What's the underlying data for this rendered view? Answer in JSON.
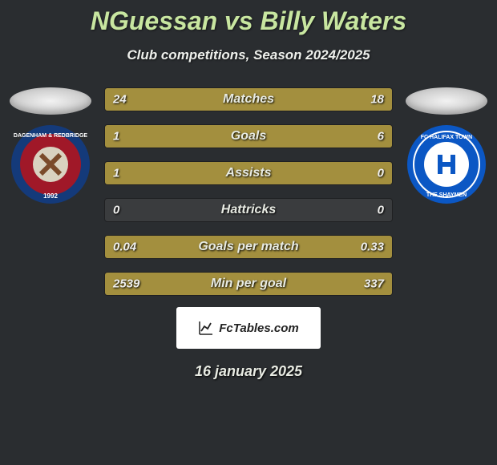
{
  "title": "NGuessan vs Billy Waters",
  "subtitle": "Club competitions, Season 2024/2025",
  "date": "16 january 2025",
  "footer": "FcTables.com",
  "colors": {
    "barFill": "#a38f3e",
    "barTrack": "#3a3c3e",
    "titleColor": "#c8e6a0",
    "bg": "#2a2d30"
  },
  "teamL": {
    "name": "Dagenham & Redbridge",
    "crest": {
      "bg": "#a01828",
      "ring": "#143a7a",
      "text": "#ffffff"
    }
  },
  "teamR": {
    "name": "FC Halifax Town",
    "crest": {
      "bg": "#0b57c4",
      "ring": "#ffffff",
      "text": "#ffffff",
      "inner": "#ffffff"
    }
  },
  "rows": [
    {
      "label": "Matches",
      "left": "24",
      "right": "18",
      "lw": 57,
      "rw": 43
    },
    {
      "label": "Goals",
      "left": "1",
      "right": "6",
      "lw": 14,
      "rw": 86
    },
    {
      "label": "Assists",
      "left": "1",
      "right": "0",
      "lw": 100,
      "rw": 0
    },
    {
      "label": "Hattricks",
      "left": "0",
      "right": "0",
      "lw": 0,
      "rw": 0
    },
    {
      "label": "Goals per match",
      "left": "0.04",
      "right": "0.33",
      "lw": 11,
      "rw": 89
    },
    {
      "label": "Min per goal",
      "left": "2539",
      "right": "337",
      "lw": 12,
      "rw": 88
    }
  ]
}
